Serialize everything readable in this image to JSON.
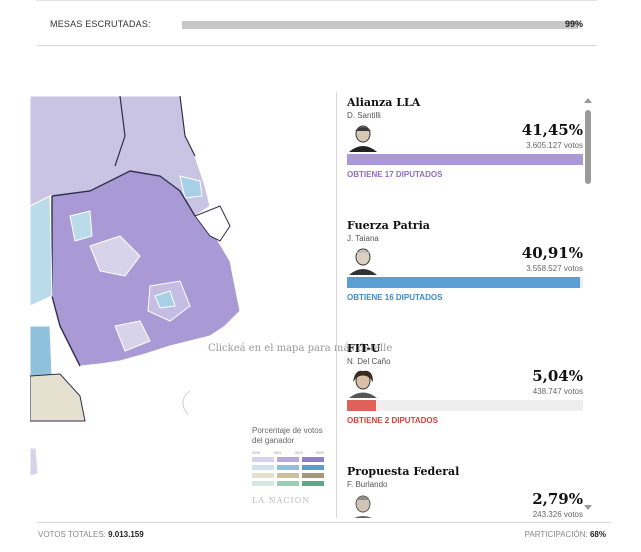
{
  "header": {
    "label": "MESAS ESCRUTADAS:",
    "progress_value": 0.99,
    "percent": "99%"
  },
  "map": {
    "hint": "Clickeá en el mapa para más detalle",
    "legend": {
      "title": "Porcentaje de votos del ganador",
      "ticks": [
        "25%",
        "35%",
        "45%",
        "55%"
      ],
      "colors": [
        "#d7d3ea",
        "#b7a9dc",
        "#8f7ec9",
        "#cfe2ee",
        "#8fc1dd",
        "#5a9ecb",
        "#e6e0d0",
        "#cbbfa0",
        "#a8967a",
        "#d3e8de",
        "#9ccdb6",
        "#5fa98a"
      ],
      "brand": "LA NACION"
    }
  },
  "candidates": [
    {
      "party": "Alianza LLA",
      "leader": "D. Santilli",
      "percent": "41,45%",
      "votes": "3.605.127 votos",
      "share": 41.45,
      "seats_label": "OBTIENE 17 DIPUTADOS",
      "color": "#a99ad6",
      "seats_color": "#8e6fc8"
    },
    {
      "party": "Fuerza Patria",
      "leader": "J. Taiana",
      "percent": "40,91%",
      "votes": "3.558.527 votos",
      "share": 40.91,
      "seats_label": "OBTIENE 16 DIPUTADOS",
      "color": "#5a9fd4",
      "seats_color": "#3f8acb"
    },
    {
      "party": "FIT-U",
      "leader": "N. Del Caño",
      "percent": "5,04%",
      "votes": "438.747 votos",
      "share": 5.04,
      "seats_label": "OBTIENE 2 DIPUTADOS",
      "color": "#e0605a",
      "seats_color": "#d9423b"
    },
    {
      "party": "Propuesta Federal",
      "leader": "F. Burlando",
      "percent": "2,79%",
      "votes": "243.326 votos",
      "share": 2.79,
      "seats_label": "",
      "color": "#bdbdbd",
      "seats_color": "#888888"
    }
  ],
  "footer": {
    "votes_label": "VOTOS TOTALES:",
    "votes_value": "9.013.159",
    "participation_label": "PARTICIPACIÓN:",
    "participation_value": "68%"
  }
}
